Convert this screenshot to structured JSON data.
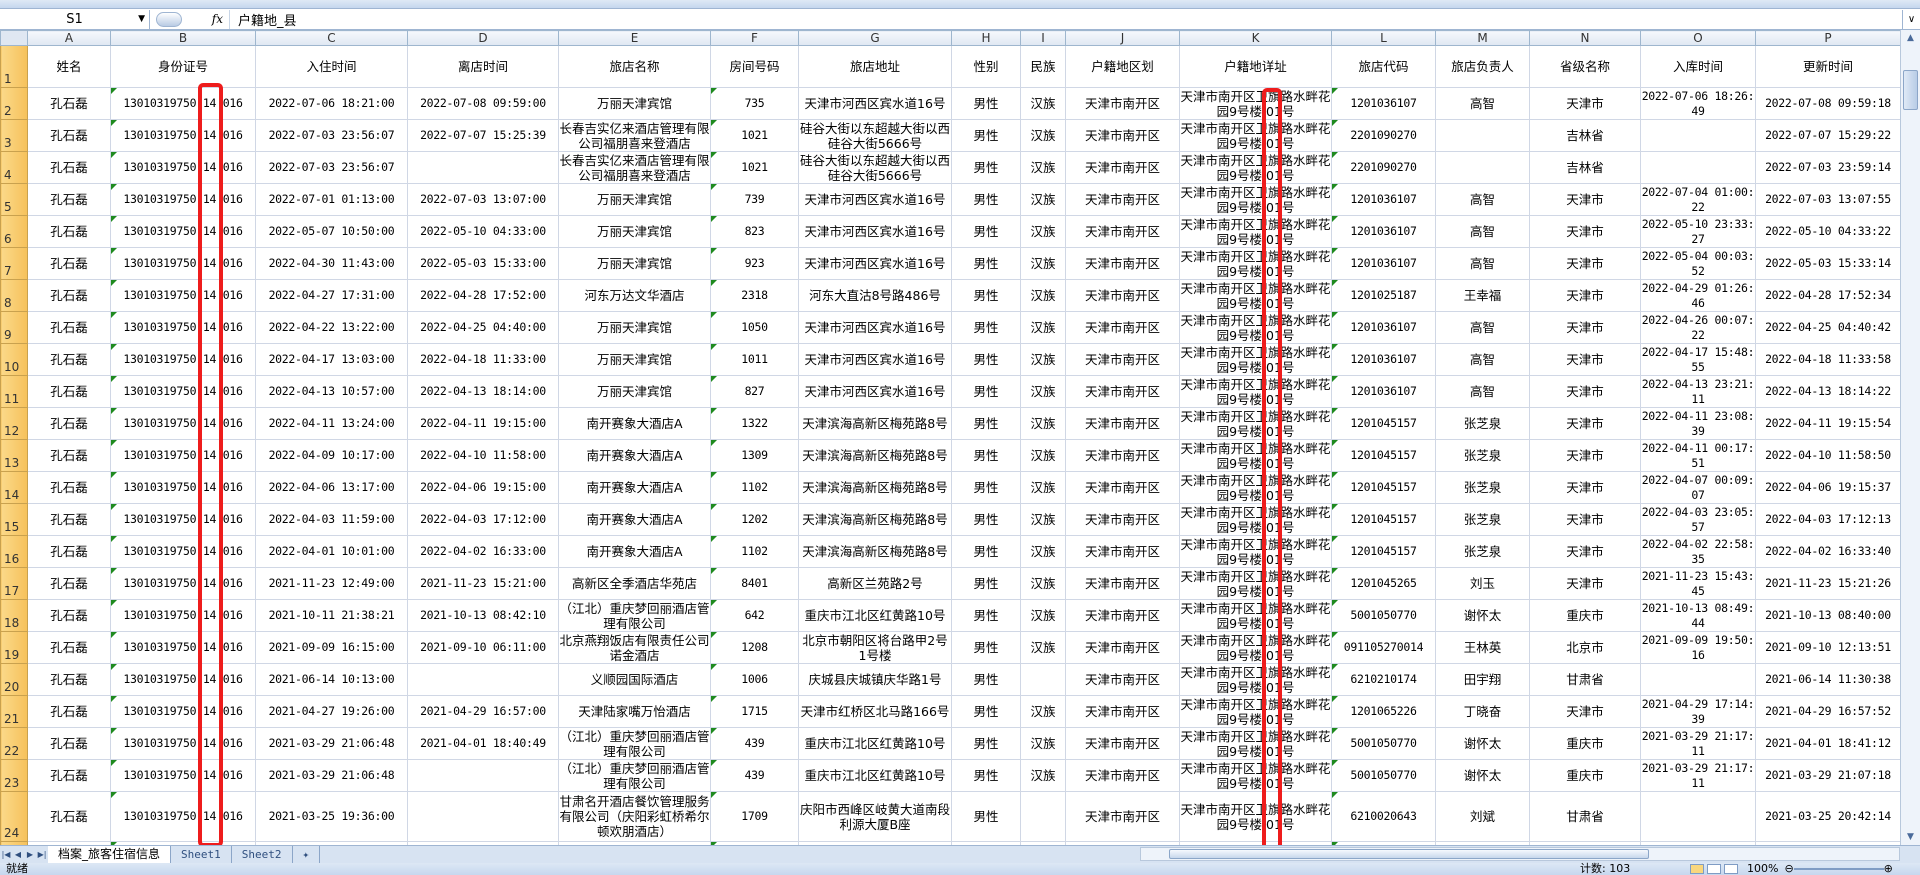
{
  "formula_bar": {
    "cell_ref": "S1",
    "fx_label": "fx",
    "value": "户籍地_县"
  },
  "sheet": {
    "column_letters": [
      "A",
      "B",
      "C",
      "D",
      "E",
      "F",
      "G",
      "H",
      "I",
      "J",
      "K",
      "L",
      "M",
      "N",
      "O",
      "P"
    ],
    "headers": [
      "姓名",
      "身份证号",
      "入住时间",
      "离店时间",
      "旅店名称",
      "房间号码",
      "旅店地址",
      "性别",
      "民族",
      "户籍地区划",
      "户籍地详址",
      "旅店代码",
      "旅店负责人",
      "省级名称",
      "入库时间",
      "更新时间"
    ],
    "rows": [
      {
        "num": "2",
        "cells": [
          "孔石磊",
          "13010319750 14 016",
          "2022-07-06 18:21:00",
          "2022-07-08 09:59:00",
          "万丽天津宾馆",
          "735",
          "天津市河西区宾水道16号",
          "男性",
          "汉族",
          "天津市南开区",
          "天津市南开区卫旗路水畔花园9号楼 01号",
          "1201036107",
          "高智",
          "天津市",
          "2022-07-06 18:26:49",
          "2022-07-08 09:59:18"
        ]
      },
      {
        "num": "3",
        "cells": [
          "孔石磊",
          "13010319750 14 016",
          "2022-07-03 23:56:07",
          "2022-07-07 15:25:39",
          "长春吉实亿来酒店管理有限公司福朋喜来登酒店",
          "1021",
          "硅谷大街以东超越大街以西硅谷大街5666号",
          "男性",
          "汉族",
          "天津市南开区",
          "天津市南开区卫旗路水畔花园9号楼 01号",
          "2201090270",
          "",
          "吉林省",
          "",
          "2022-07-07 15:29:22"
        ]
      },
      {
        "num": "4",
        "cells": [
          "孔石磊",
          "13010319750 14 016",
          "2022-07-03 23:56:07",
          "",
          "长春吉实亿来酒店管理有限公司福朋喜来登酒店",
          "1021",
          "硅谷大街以东超越大街以西硅谷大街5666号",
          "男性",
          "汉族",
          "天津市南开区",
          "天津市南开区卫旗路水畔花园9号楼 01号",
          "2201090270",
          "",
          "吉林省",
          "",
          "2022-07-03 23:59:14"
        ]
      },
      {
        "num": "5",
        "cells": [
          "孔石磊",
          "13010319750 14 016",
          "2022-07-01 01:13:00",
          "2022-07-03 13:07:00",
          "万丽天津宾馆",
          "739",
          "天津市河西区宾水道16号",
          "男性",
          "汉族",
          "天津市南开区",
          "天津市南开区卫旗路水畔花园9号楼 01号",
          "1201036107",
          "高智",
          "天津市",
          "2022-07-04 01:00:22",
          "2022-07-03 13:07:55"
        ]
      },
      {
        "num": "6",
        "cells": [
          "孔石磊",
          "13010319750 14 016",
          "2022-05-07 10:50:00",
          "2022-05-10 04:33:00",
          "万丽天津宾馆",
          "823",
          "天津市河西区宾水道16号",
          "男性",
          "汉族",
          "天津市南开区",
          "天津市南开区卫旗路水畔花园9号楼 01号",
          "1201036107",
          "高智",
          "天津市",
          "2022-05-10 23:33:27",
          "2022-05-10 04:33:22"
        ]
      },
      {
        "num": "7",
        "cells": [
          "孔石磊",
          "13010319750 14 016",
          "2022-04-30 11:43:00",
          "2022-05-03 15:33:00",
          "万丽天津宾馆",
          "923",
          "天津市河西区宾水道16号",
          "男性",
          "汉族",
          "天津市南开区",
          "天津市南开区卫旗路水畔花园9号楼 01号",
          "1201036107",
          "高智",
          "天津市",
          "2022-05-04 00:03:52",
          "2022-05-03 15:33:14"
        ]
      },
      {
        "num": "8",
        "cells": [
          "孔石磊",
          "13010319750 14 016",
          "2022-04-27 17:31:00",
          "2022-04-28 17:52:00",
          "河东万达文华酒店",
          "2318",
          "河东大直沽8号路486号",
          "男性",
          "汉族",
          "天津市南开区",
          "天津市南开区卫旗路水畔花园9号楼 01号",
          "1201025187",
          "王幸福",
          "天津市",
          "2022-04-29 01:26:46",
          "2022-04-28 17:52:34"
        ]
      },
      {
        "num": "9",
        "cells": [
          "孔石磊",
          "13010319750 14 016",
          "2022-04-22 13:22:00",
          "2022-04-25 04:40:00",
          "万丽天津宾馆",
          "1050",
          "天津市河西区宾水道16号",
          "男性",
          "汉族",
          "天津市南开区",
          "天津市南开区卫旗路水畔花园9号楼 01号",
          "1201036107",
          "高智",
          "天津市",
          "2022-04-26 00:07:22",
          "2022-04-25 04:40:42"
        ]
      },
      {
        "num": "10",
        "cells": [
          "孔石磊",
          "13010319750 14 016",
          "2022-04-17 13:03:00",
          "2022-04-18 11:33:00",
          "万丽天津宾馆",
          "1011",
          "天津市河西区宾水道16号",
          "男性",
          "汉族",
          "天津市南开区",
          "天津市南开区卫旗路水畔花园9号楼 01号",
          "1201036107",
          "高智",
          "天津市",
          "2022-04-17 15:48:55",
          "2022-04-18 11:33:58"
        ]
      },
      {
        "num": "11",
        "cells": [
          "孔石磊",
          "13010319750 14 016",
          "2022-04-13 10:57:00",
          "2022-04-13 18:14:00",
          "万丽天津宾馆",
          "827",
          "天津市河西区宾水道16号",
          "男性",
          "汉族",
          "天津市南开区",
          "天津市南开区卫旗路水畔花园9号楼 01号",
          "1201036107",
          "高智",
          "天津市",
          "2022-04-13 23:21:11",
          "2022-04-13 18:14:22"
        ]
      },
      {
        "num": "12",
        "cells": [
          "孔石磊",
          "13010319750 14 016",
          "2022-04-11 13:24:00",
          "2022-04-11 19:15:00",
          "南开赛象大酒店A",
          "1322",
          "天津滨海高新区梅苑路8号",
          "男性",
          "汉族",
          "天津市南开区",
          "天津市南开区卫旗路水畔花园9号楼 01号",
          "1201045157",
          "张芝泉",
          "天津市",
          "2022-04-11 23:08:39",
          "2022-04-11 19:15:54"
        ]
      },
      {
        "num": "13",
        "cells": [
          "孔石磊",
          "13010319750 14 016",
          "2022-04-09 10:17:00",
          "2022-04-10 11:58:00",
          "南开赛象大酒店A",
          "1309",
          "天津滨海高新区梅苑路8号",
          "男性",
          "汉族",
          "天津市南开区",
          "天津市南开区卫旗路水畔花园9号楼 01号",
          "1201045157",
          "张芝泉",
          "天津市",
          "2022-04-11 00:17:51",
          "2022-04-10 11:58:50"
        ]
      },
      {
        "num": "14",
        "cells": [
          "孔石磊",
          "13010319750 14 016",
          "2022-04-06 13:17:00",
          "2022-04-06 19:15:00",
          "南开赛象大酒店A",
          "1102",
          "天津滨海高新区梅苑路8号",
          "男性",
          "汉族",
          "天津市南开区",
          "天津市南开区卫旗路水畔花园9号楼 01号",
          "1201045157",
          "张芝泉",
          "天津市",
          "2022-04-07 00:09:07",
          "2022-04-06 19:15:37"
        ]
      },
      {
        "num": "15",
        "cells": [
          "孔石磊",
          "13010319750 14 016",
          "2022-04-03 11:59:00",
          "2022-04-03 17:12:00",
          "南开赛象大酒店A",
          "1202",
          "天津滨海高新区梅苑路8号",
          "男性",
          "汉族",
          "天津市南开区",
          "天津市南开区卫旗路水畔花园9号楼 01号",
          "1201045157",
          "张芝泉",
          "天津市",
          "2022-04-03 23:05:57",
          "2022-04-03 17:12:13"
        ]
      },
      {
        "num": "16",
        "cells": [
          "孔石磊",
          "13010319750 14 016",
          "2022-04-01 10:01:00",
          "2022-04-02 16:33:00",
          "南开赛象大酒店A",
          "1102",
          "天津滨海高新区梅苑路8号",
          "男性",
          "汉族",
          "天津市南开区",
          "天津市南开区卫旗路水畔花园9号楼 01号",
          "1201045157",
          "张芝泉",
          "天津市",
          "2022-04-02 22:58:35",
          "2022-04-02 16:33:40"
        ]
      },
      {
        "num": "17",
        "cells": [
          "孔石磊",
          "13010319750 14 016",
          "2021-11-23 12:49:00",
          "2021-11-23 15:21:00",
          "高新区全季酒店华苑店",
          "8401",
          "高新区兰苑路2号",
          "男性",
          "汉族",
          "天津市南开区",
          "天津市南开区卫旗路水畔花园9号楼 01号",
          "1201045265",
          "刘玉",
          "天津市",
          "2021-11-23 15:43:45",
          "2021-11-23 15:21:26"
        ]
      },
      {
        "num": "18",
        "cells": [
          "孔石磊",
          "13010319750 14 016",
          "2021-10-11 21:38:21",
          "2021-10-13 08:42:10",
          "（江北）重庆梦回丽酒店管理有限公司",
          "642",
          "重庆市江北区红黄路10号",
          "男性",
          "汉族",
          "天津市南开区",
          "天津市南开区卫旗路水畔花园9号楼 01号",
          "5001050770",
          "谢怀太",
          "重庆市",
          "2021-10-13 08:49:44",
          "2021-10-13 08:40:00"
        ]
      },
      {
        "num": "19",
        "cells": [
          "孔石磊",
          "13010319750 14 016",
          "2021-09-09 16:15:00",
          "2021-09-10 06:11:00",
          "北京燕翔饭店有限责任公司诺金酒店",
          "1208",
          "北京市朝阳区将台路甲2号1号楼",
          "男性",
          "汉族",
          "天津市南开区",
          "天津市南开区卫旗路水畔花园9号楼 01号",
          "091105270014",
          "王林英",
          "北京市",
          "2021-09-09 19:50:16",
          "2021-09-10 12:13:51"
        ]
      },
      {
        "num": "20",
        "cells": [
          "孔石磊",
          "13010319750 14 016",
          "2021-06-14 10:13:00",
          "",
          "义顺园国际酒店",
          "1006",
          "庆城县庆城镇庆华路1号",
          "男性",
          "",
          "天津市南开区",
          "天津市南开区卫旗路水畔花园9号楼 01号",
          "6210210174",
          "田宇翔",
          "甘肃省",
          "",
          "2021-06-14 11:30:38"
        ]
      },
      {
        "num": "21",
        "cells": [
          "孔石磊",
          "13010319750 14 016",
          "2021-04-27 19:26:00",
          "2021-04-29 16:57:00",
          "天津陆家嘴万怡酒店",
          "1715",
          "天津市红桥区北马路166号",
          "男性",
          "汉族",
          "天津市南开区",
          "天津市南开区卫旗路水畔花园9号楼 01号",
          "1201065226",
          "丁晓奋",
          "天津市",
          "2021-04-29 17:14:39",
          "2021-04-29 16:57:52"
        ]
      },
      {
        "num": "22",
        "cells": [
          "孔石磊",
          "13010319750 14 016",
          "2021-03-29 21:06:48",
          "2021-04-01 18:40:49",
          "（江北）重庆梦回丽酒店管理有限公司",
          "439",
          "重庆市江北区红黄路10号",
          "男性",
          "汉族",
          "天津市南开区",
          "天津市南开区卫旗路水畔花园9号楼 01号",
          "5001050770",
          "谢怀太",
          "重庆市",
          "2021-03-29 21:17:11",
          "2021-04-01 18:41:12"
        ]
      },
      {
        "num": "23",
        "cells": [
          "孔石磊",
          "13010319750 14 016",
          "2021-03-29 21:06:48",
          "",
          "（江北）重庆梦回丽酒店管理有限公司",
          "439",
          "重庆市江北区红黄路10号",
          "男性",
          "汉族",
          "天津市南开区",
          "天津市南开区卫旗路水畔花园9号楼 01号",
          "5001050770",
          "谢怀太",
          "重庆市",
          "2021-03-29 21:17:11",
          "2021-03-29 21:07:18"
        ]
      },
      {
        "num": "24",
        "cells": [
          "孔石磊",
          "13010319750 14 016",
          "2021-03-25 19:36:00",
          "",
          "甘肃名开酒店餐饮管理服务有限公司（庆阳彩虹桥希尔顿欢朋酒店）",
          "1709",
          "庆阳市西峰区岐黄大道南段利源大厦B座",
          "男性",
          "",
          "天津市南开区",
          "天津市南开区卫旗路水畔花园9号楼 01号",
          "6210020643",
          "刘斌",
          "甘肃省",
          "",
          "2021-03-25 20:42:14"
        ]
      }
    ]
  },
  "sheet_tabs": [
    {
      "label": "档案_旅客住宿信息",
      "active": true
    },
    {
      "label": "Sheet1",
      "active": false
    },
    {
      "label": "Sheet2",
      "active": false
    }
  ],
  "status_bar": {
    "ready": "就绪",
    "count": "计数: 103",
    "zoom": "100%"
  },
  "colors": {
    "highlight_box": "#ee1c1c",
    "row_header": "#f6c15b",
    "text_number_marker": "#1f8a1f"
  }
}
